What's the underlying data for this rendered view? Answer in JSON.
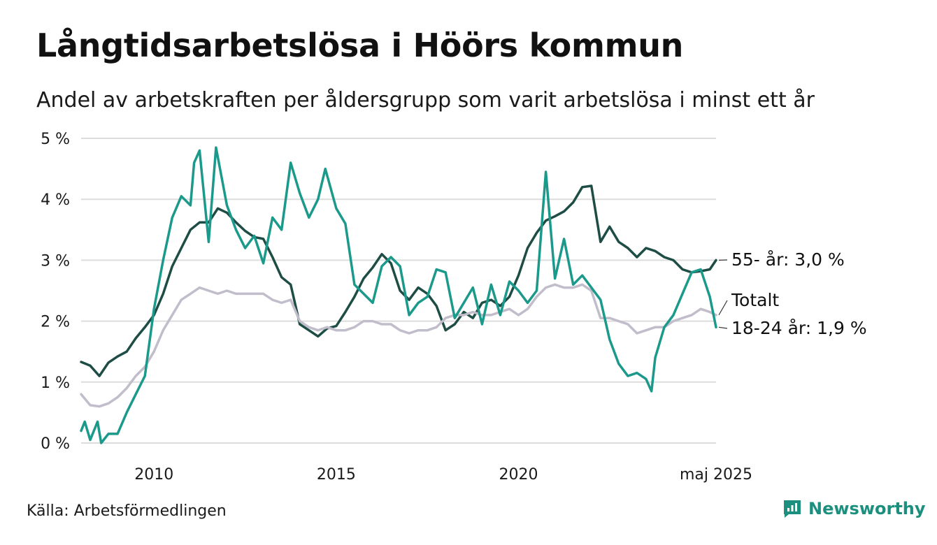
{
  "header": {
    "title": "Långtidsarbetslösa i Höörs kommun",
    "subtitle": "Andel av arbetskraften per åldersgrupp som varit arbetslösa i minst ett år"
  },
  "footer": {
    "source": "Källa: Arbetsförmedlingen",
    "brand": "Newsworthy",
    "brand_icon": "newsworthy-logo-icon"
  },
  "colors": {
    "55plus": "#1e4d45",
    "18to24": "#1b998b",
    "total": "#c1bdcb",
    "grid": "#dcdcdc",
    "brand": "#1d8f7e"
  },
  "chart_data": {
    "type": "line",
    "xlim": [
      2008.0,
      2025.42
    ],
    "ylim": [
      0,
      5
    ],
    "y_ticks": [
      "0 %",
      "1 %",
      "2 %",
      "3 %",
      "4 %",
      "5 %"
    ],
    "x_ticks": [
      {
        "value": 2010,
        "label": "2010"
      },
      {
        "value": 2015,
        "label": "2015"
      },
      {
        "value": 2020,
        "label": "2020"
      },
      {
        "value": 2025.42,
        "label": "maj 2025"
      }
    ],
    "grid": "horizontal",
    "series": [
      {
        "name": "55-",
        "end_label": "55- år: 3,0 %",
        "color": "#1e4d45",
        "points": [
          [
            2008.0,
            1.33
          ],
          [
            2008.25,
            1.27
          ],
          [
            2008.5,
            1.1
          ],
          [
            2008.75,
            1.32
          ],
          [
            2009.0,
            1.42
          ],
          [
            2009.25,
            1.5
          ],
          [
            2009.5,
            1.72
          ],
          [
            2009.75,
            1.9
          ],
          [
            2010.0,
            2.1
          ],
          [
            2010.25,
            2.45
          ],
          [
            2010.5,
            2.9
          ],
          [
            2010.75,
            3.2
          ],
          [
            2011.0,
            3.5
          ],
          [
            2011.25,
            3.62
          ],
          [
            2011.5,
            3.62
          ],
          [
            2011.75,
            3.85
          ],
          [
            2012.0,
            3.78
          ],
          [
            2012.25,
            3.62
          ],
          [
            2012.5,
            3.48
          ],
          [
            2012.75,
            3.38
          ],
          [
            2013.0,
            3.35
          ],
          [
            2013.25,
            3.05
          ],
          [
            2013.5,
            2.72
          ],
          [
            2013.75,
            2.6
          ],
          [
            2014.0,
            1.95
          ],
          [
            2014.25,
            1.85
          ],
          [
            2014.5,
            1.75
          ],
          [
            2014.75,
            1.88
          ],
          [
            2015.0,
            1.92
          ],
          [
            2015.25,
            2.15
          ],
          [
            2015.5,
            2.4
          ],
          [
            2015.75,
            2.7
          ],
          [
            2016.0,
            2.88
          ],
          [
            2016.25,
            3.1
          ],
          [
            2016.5,
            2.95
          ],
          [
            2016.75,
            2.5
          ],
          [
            2017.0,
            2.35
          ],
          [
            2017.25,
            2.55
          ],
          [
            2017.5,
            2.45
          ],
          [
            2017.75,
            2.25
          ],
          [
            2018.0,
            1.85
          ],
          [
            2018.25,
            1.95
          ],
          [
            2018.5,
            2.15
          ],
          [
            2018.75,
            2.05
          ],
          [
            2019.0,
            2.3
          ],
          [
            2019.25,
            2.35
          ],
          [
            2019.5,
            2.25
          ],
          [
            2019.75,
            2.4
          ],
          [
            2020.0,
            2.75
          ],
          [
            2020.25,
            3.2
          ],
          [
            2020.5,
            3.45
          ],
          [
            2020.75,
            3.65
          ],
          [
            2021.0,
            3.72
          ],
          [
            2021.25,
            3.8
          ],
          [
            2021.5,
            3.95
          ],
          [
            2021.75,
            4.2
          ],
          [
            2022.0,
            4.22
          ],
          [
            2022.25,
            3.3
          ],
          [
            2022.5,
            3.55
          ],
          [
            2022.75,
            3.3
          ],
          [
            2023.0,
            3.2
          ],
          [
            2023.25,
            3.05
          ],
          [
            2023.5,
            3.2
          ],
          [
            2023.75,
            3.15
          ],
          [
            2024.0,
            3.05
          ],
          [
            2024.25,
            3.0
          ],
          [
            2024.5,
            2.85
          ],
          [
            2024.75,
            2.8
          ],
          [
            2025.0,
            2.82
          ],
          [
            2025.25,
            2.85
          ],
          [
            2025.42,
            3.0
          ]
        ]
      },
      {
        "name": "Totalt",
        "end_label": "Totalt",
        "color": "#c1bdcb",
        "points": [
          [
            2008.0,
            0.8
          ],
          [
            2008.25,
            0.62
          ],
          [
            2008.5,
            0.6
          ],
          [
            2008.75,
            0.65
          ],
          [
            2009.0,
            0.75
          ],
          [
            2009.25,
            0.9
          ],
          [
            2009.5,
            1.1
          ],
          [
            2009.75,
            1.25
          ],
          [
            2010.0,
            1.5
          ],
          [
            2010.25,
            1.85
          ],
          [
            2010.5,
            2.1
          ],
          [
            2010.75,
            2.35
          ],
          [
            2011.0,
            2.45
          ],
          [
            2011.25,
            2.55
          ],
          [
            2011.5,
            2.5
          ],
          [
            2011.75,
            2.45
          ],
          [
            2012.0,
            2.5
          ],
          [
            2012.25,
            2.45
          ],
          [
            2012.5,
            2.45
          ],
          [
            2012.75,
            2.45
          ],
          [
            2013.0,
            2.45
          ],
          [
            2013.25,
            2.35
          ],
          [
            2013.5,
            2.3
          ],
          [
            2013.75,
            2.35
          ],
          [
            2014.0,
            2.0
          ],
          [
            2014.25,
            1.9
          ],
          [
            2014.5,
            1.85
          ],
          [
            2014.75,
            1.9
          ],
          [
            2015.0,
            1.85
          ],
          [
            2015.25,
            1.85
          ],
          [
            2015.5,
            1.9
          ],
          [
            2015.75,
            2.0
          ],
          [
            2016.0,
            2.0
          ],
          [
            2016.25,
            1.95
          ],
          [
            2016.5,
            1.95
          ],
          [
            2016.75,
            1.85
          ],
          [
            2017.0,
            1.8
          ],
          [
            2017.25,
            1.85
          ],
          [
            2017.5,
            1.85
          ],
          [
            2017.75,
            1.9
          ],
          [
            2018.0,
            2.05
          ],
          [
            2018.25,
            2.1
          ],
          [
            2018.5,
            2.1
          ],
          [
            2018.75,
            2.15
          ],
          [
            2019.0,
            2.1
          ],
          [
            2019.25,
            2.1
          ],
          [
            2019.5,
            2.15
          ],
          [
            2019.75,
            2.2
          ],
          [
            2020.0,
            2.1
          ],
          [
            2020.25,
            2.2
          ],
          [
            2020.5,
            2.4
          ],
          [
            2020.75,
            2.55
          ],
          [
            2021.0,
            2.6
          ],
          [
            2021.25,
            2.55
          ],
          [
            2021.5,
            2.55
          ],
          [
            2021.75,
            2.6
          ],
          [
            2022.0,
            2.5
          ],
          [
            2022.25,
            2.05
          ],
          [
            2022.5,
            2.05
          ],
          [
            2022.75,
            2.0
          ],
          [
            2023.0,
            1.95
          ],
          [
            2023.25,
            1.8
          ],
          [
            2023.5,
            1.85
          ],
          [
            2023.75,
            1.9
          ],
          [
            2024.0,
            1.9
          ],
          [
            2024.25,
            2.0
          ],
          [
            2024.5,
            2.05
          ],
          [
            2024.75,
            2.1
          ],
          [
            2025.0,
            2.2
          ],
          [
            2025.25,
            2.15
          ],
          [
            2025.42,
            2.1
          ]
        ]
      },
      {
        "name": "18-24",
        "end_label": "18-24 år: 1,9 %",
        "color": "#1b998b",
        "points": [
          [
            2008.0,
            0.2
          ],
          [
            2008.1,
            0.35
          ],
          [
            2008.25,
            0.05
          ],
          [
            2008.45,
            0.35
          ],
          [
            2008.55,
            0.0
          ],
          [
            2008.75,
            0.15
          ],
          [
            2009.0,
            0.15
          ],
          [
            2009.25,
            0.5
          ],
          [
            2009.5,
            0.8
          ],
          [
            2009.75,
            1.1
          ],
          [
            2010.0,
            2.2
          ],
          [
            2010.25,
            3.0
          ],
          [
            2010.5,
            3.7
          ],
          [
            2010.75,
            4.05
          ],
          [
            2011.0,
            3.9
          ],
          [
            2011.1,
            4.6
          ],
          [
            2011.25,
            4.8
          ],
          [
            2011.5,
            3.3
          ],
          [
            2011.7,
            4.85
          ],
          [
            2012.0,
            3.9
          ],
          [
            2012.25,
            3.5
          ],
          [
            2012.5,
            3.2
          ],
          [
            2012.75,
            3.4
          ],
          [
            2013.0,
            2.95
          ],
          [
            2013.25,
            3.7
          ],
          [
            2013.5,
            3.5
          ],
          [
            2013.75,
            4.6
          ],
          [
            2014.0,
            4.1
          ],
          [
            2014.25,
            3.7
          ],
          [
            2014.5,
            4.0
          ],
          [
            2014.7,
            4.5
          ],
          [
            2015.0,
            3.85
          ],
          [
            2015.25,
            3.6
          ],
          [
            2015.5,
            2.6
          ],
          [
            2015.75,
            2.45
          ],
          [
            2016.0,
            2.3
          ],
          [
            2016.25,
            2.9
          ],
          [
            2016.5,
            3.05
          ],
          [
            2016.75,
            2.9
          ],
          [
            2017.0,
            2.1
          ],
          [
            2017.25,
            2.3
          ],
          [
            2017.5,
            2.4
          ],
          [
            2017.75,
            2.85
          ],
          [
            2018.0,
            2.8
          ],
          [
            2018.25,
            2.05
          ],
          [
            2018.5,
            2.3
          ],
          [
            2018.75,
            2.55
          ],
          [
            2019.0,
            1.95
          ],
          [
            2019.25,
            2.6
          ],
          [
            2019.5,
            2.1
          ],
          [
            2019.75,
            2.65
          ],
          [
            2020.0,
            2.5
          ],
          [
            2020.25,
            2.3
          ],
          [
            2020.5,
            2.5
          ],
          [
            2020.75,
            4.45
          ],
          [
            2021.0,
            2.7
          ],
          [
            2021.25,
            3.35
          ],
          [
            2021.5,
            2.6
          ],
          [
            2021.75,
            2.75
          ],
          [
            2022.0,
            2.55
          ],
          [
            2022.25,
            2.35
          ],
          [
            2022.5,
            1.7
          ],
          [
            2022.75,
            1.3
          ],
          [
            2023.0,
            1.1
          ],
          [
            2023.25,
            1.15
          ],
          [
            2023.5,
            1.05
          ],
          [
            2023.65,
            0.85
          ],
          [
            2023.75,
            1.4
          ],
          [
            2024.0,
            1.9
          ],
          [
            2024.25,
            2.1
          ],
          [
            2024.5,
            2.45
          ],
          [
            2024.75,
            2.8
          ],
          [
            2025.0,
            2.85
          ],
          [
            2025.25,
            2.4
          ],
          [
            2025.42,
            1.9
          ]
        ]
      }
    ]
  }
}
